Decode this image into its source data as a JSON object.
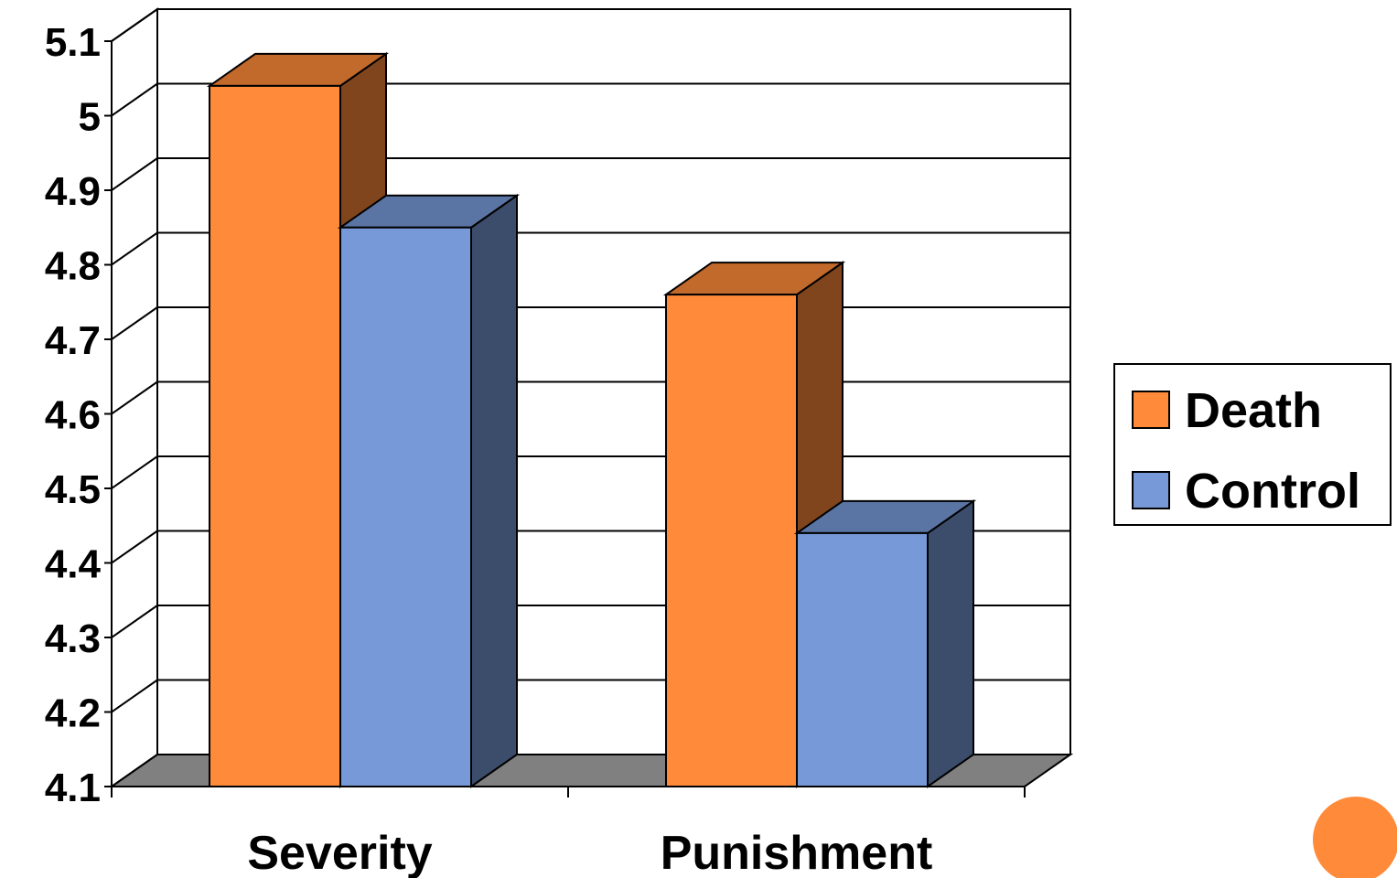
{
  "chart_data": {
    "type": "bar",
    "style": "3d-clustered-column",
    "categories": [
      "Severity",
      "Punishment"
    ],
    "series": [
      {
        "name": "Death",
        "values": [
          5.04,
          4.76
        ],
        "color": "#FF8A3A"
      },
      {
        "name": "Control",
        "values": [
          4.85,
          4.44
        ],
        "color": "#7799D8"
      }
    ],
    "y_ticks": [
      "5.1",
      "5",
      "4.9",
      "4.8",
      "4.7",
      "4.6",
      "4.5",
      "4.4",
      "4.3",
      "4.2",
      "4.1"
    ],
    "ylim": [
      4.1,
      5.1
    ],
    "grid": true,
    "legend_position": "right",
    "accent_circle_color": "#FF8A3A"
  }
}
